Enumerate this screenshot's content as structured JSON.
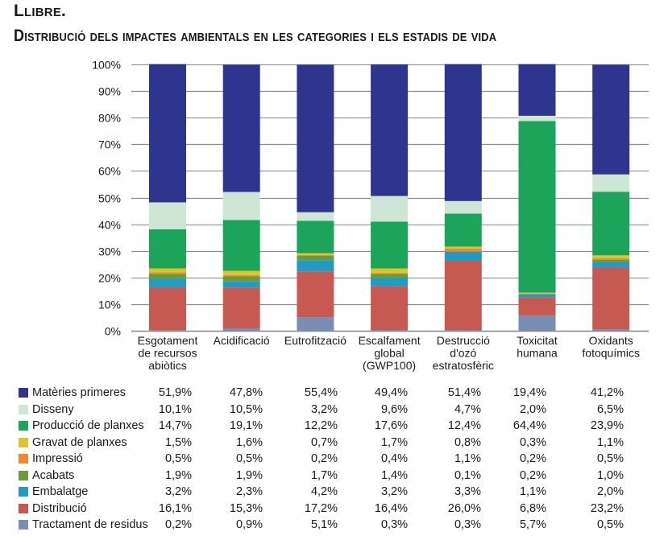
{
  "header": {
    "title": "Llibre.",
    "subtitle": "Distribució dels impactes ambientals en les categories i els estadis de vida"
  },
  "chart_data": {
    "type": "bar",
    "stacked": true,
    "title": "Distribució dels impactes ambientals en les categories i els estadis de vida",
    "xlabel": "",
    "ylabel": "",
    "ylim": [
      0,
      100
    ],
    "y_ticks": [
      "0%",
      "10%",
      "20%",
      "30%",
      "40%",
      "50%",
      "60%",
      "70%",
      "80%",
      "90%",
      "100%"
    ],
    "grid": true,
    "legend_position": "bottom-left (as table)",
    "categories": [
      [
        "Esgotament",
        "de recursos",
        "abiòtics"
      ],
      [
        "Acidificació"
      ],
      [
        "Eutrofització"
      ],
      [
        "Escalfament",
        "global",
        "(GWP100)"
      ],
      [
        "Destrucció",
        "d'ozó",
        "estratosfèric"
      ],
      [
        "Toxicitat",
        "humana"
      ],
      [
        "Oxidants",
        "fotoquímics"
      ]
    ],
    "series": [
      {
        "name": "Tractament de residus",
        "color": "#7a8db3",
        "values": [
          0.2,
          0.9,
          5.1,
          0.3,
          0.3,
          5.7,
          0.5
        ]
      },
      {
        "name": "Distribució",
        "color": "#c65a52",
        "values": [
          16.1,
          15.3,
          17.2,
          16.4,
          26.0,
          6.8,
          23.2
        ]
      },
      {
        "name": "Embalatge",
        "color": "#1f9bc4",
        "values": [
          3.2,
          2.3,
          4.2,
          3.2,
          3.3,
          1.1,
          2.0
        ]
      },
      {
        "name": "Acabats",
        "color": "#6b9a3a",
        "values": [
          1.9,
          1.9,
          1.7,
          1.4,
          0.1,
          0.2,
          1.0
        ]
      },
      {
        "name": "Impressió",
        "color": "#ee8a33",
        "values": [
          0.5,
          0.5,
          0.2,
          0.4,
          1.1,
          0.2,
          0.5
        ]
      },
      {
        "name": "Gravat de planxes",
        "color": "#dcc52a",
        "values": [
          1.5,
          1.6,
          0.7,
          1.7,
          0.8,
          0.3,
          1.1
        ]
      },
      {
        "name": "Producció de planxes",
        "color": "#1ca55a",
        "values": [
          14.7,
          19.1,
          12.2,
          17.6,
          12.4,
          64.4,
          23.9
        ]
      },
      {
        "name": "Disseny",
        "color": "#cfe6d6",
        "values": [
          10.1,
          10.5,
          3.2,
          9.6,
          4.7,
          2.0,
          6.5
        ]
      },
      {
        "name": "Matèries primeres",
        "color": "#2e358e",
        "values": [
          51.9,
          47.8,
          55.4,
          49.4,
          51.4,
          19.4,
          41.2
        ]
      }
    ]
  },
  "table": {
    "rows": [
      {
        "label": "Matèries primeres",
        "color": "#2e358e",
        "cells": [
          "51,9%",
          "47,8%",
          "55,4%",
          "49,4%",
          "51,4%",
          "19,4%",
          "41,2%"
        ]
      },
      {
        "label": "Disseny",
        "color": "#cfe6d6",
        "cells": [
          "10,1%",
          "10,5%",
          "3,2%",
          "9,6%",
          "4,7%",
          "2,0%",
          "6,5%"
        ]
      },
      {
        "label": "Producció de planxes",
        "color": "#1ca55a",
        "cells": [
          "14,7%",
          "19,1%",
          "12,2%",
          "17,6%",
          "12,4%",
          "64,4%",
          "23,9%"
        ]
      },
      {
        "label": "Gravat de planxes",
        "color": "#dcc52a",
        "cells": [
          "1,5%",
          "1,6%",
          "0,7%",
          "1,7%",
          "0,8%",
          "0,3%",
          "1,1%"
        ]
      },
      {
        "label": "Impressió",
        "color": "#ee8a33",
        "cells": [
          "0,5%",
          "0,5%",
          "0,2%",
          "0,4%",
          "1,1%",
          "0,2%",
          "0,5%"
        ]
      },
      {
        "label": "Acabats",
        "color": "#6b9a3a",
        "cells": [
          "1,9%",
          "1,9%",
          "1,7%",
          "1,4%",
          "0,1%",
          "0,2%",
          "1,0%"
        ]
      },
      {
        "label": "Embalatge",
        "color": "#1f9bc4",
        "cells": [
          "3,2%",
          "2,3%",
          "4,2%",
          "3,2%",
          "3,3%",
          "1,1%",
          "2,0%"
        ]
      },
      {
        "label": "Distribució",
        "color": "#c65a52",
        "cells": [
          "16,1%",
          "15,3%",
          "17,2%",
          "16,4%",
          "26,0%",
          "6,8%",
          "23,2%"
        ]
      },
      {
        "label": "Tractament de residus",
        "color": "#7a8db3",
        "cells": [
          "0,2%",
          "0,9%",
          "5,1%",
          "0,3%",
          "0,3%",
          "5,7%",
          "0,5%"
        ]
      }
    ]
  }
}
